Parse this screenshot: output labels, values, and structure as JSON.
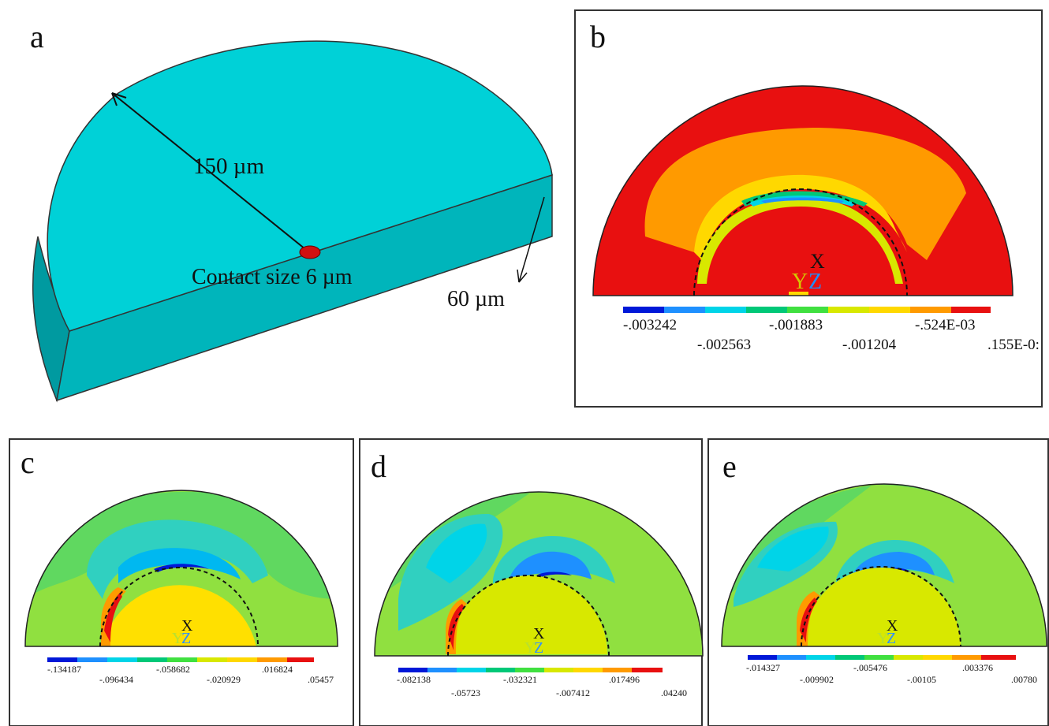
{
  "panel_a": {
    "letter": "a",
    "radius_label": "150 µm",
    "contact_label": "Contact size 6 µm",
    "thickness_label": "60 µm",
    "colors": {
      "top": "#00d1d7",
      "side": "#00b5bb",
      "left": "#009aa0",
      "contact": "#d01010"
    }
  },
  "panel_b": {
    "letter": "b",
    "axis_x": "X",
    "axis_y": "Y",
    "axis_z": "Z",
    "legend_upper": [
      ".003242",
      ".001883",
      ".524E-03"
    ],
    "legend_lower": [
      ".002563",
      ".001204",
      ".155E-0:"
    ],
    "legend_upper_prefix": "-",
    "legend_colors": [
      "#0018d8",
      "#1e90ff",
      "#00d4e8",
      "#00c878",
      "#40e040",
      "#d8e800",
      "#ffd800",
      "#ff9a00",
      "#e81010"
    ]
  },
  "panel_c": {
    "letter": "c",
    "axis_x": "X",
    "axis_y": "Y",
    "axis_z": "Z",
    "legend_upper": [
      "-.134187",
      "-.058682",
      ".016824"
    ],
    "legend_lower": [
      "-.096434",
      "-.020929",
      ".05457"
    ]
  },
  "panel_d": {
    "letter": "d",
    "axis_x": "X",
    "axis_y": "Y",
    "axis_z": "Z",
    "legend_upper": [
      "-.082138",
      "-.032321",
      ".017496"
    ],
    "legend_lower": [
      "-.05723",
      "-.007412",
      ".04240"
    ]
  },
  "panel_e": {
    "letter": "e",
    "axis_x": "X",
    "axis_y": "Y",
    "axis_z": "Z",
    "legend_upper": [
      "-.014327",
      "-.005476",
      ".003376"
    ],
    "legend_lower": [
      "-.009902",
      "-.00105",
      ".00780"
    ]
  }
}
